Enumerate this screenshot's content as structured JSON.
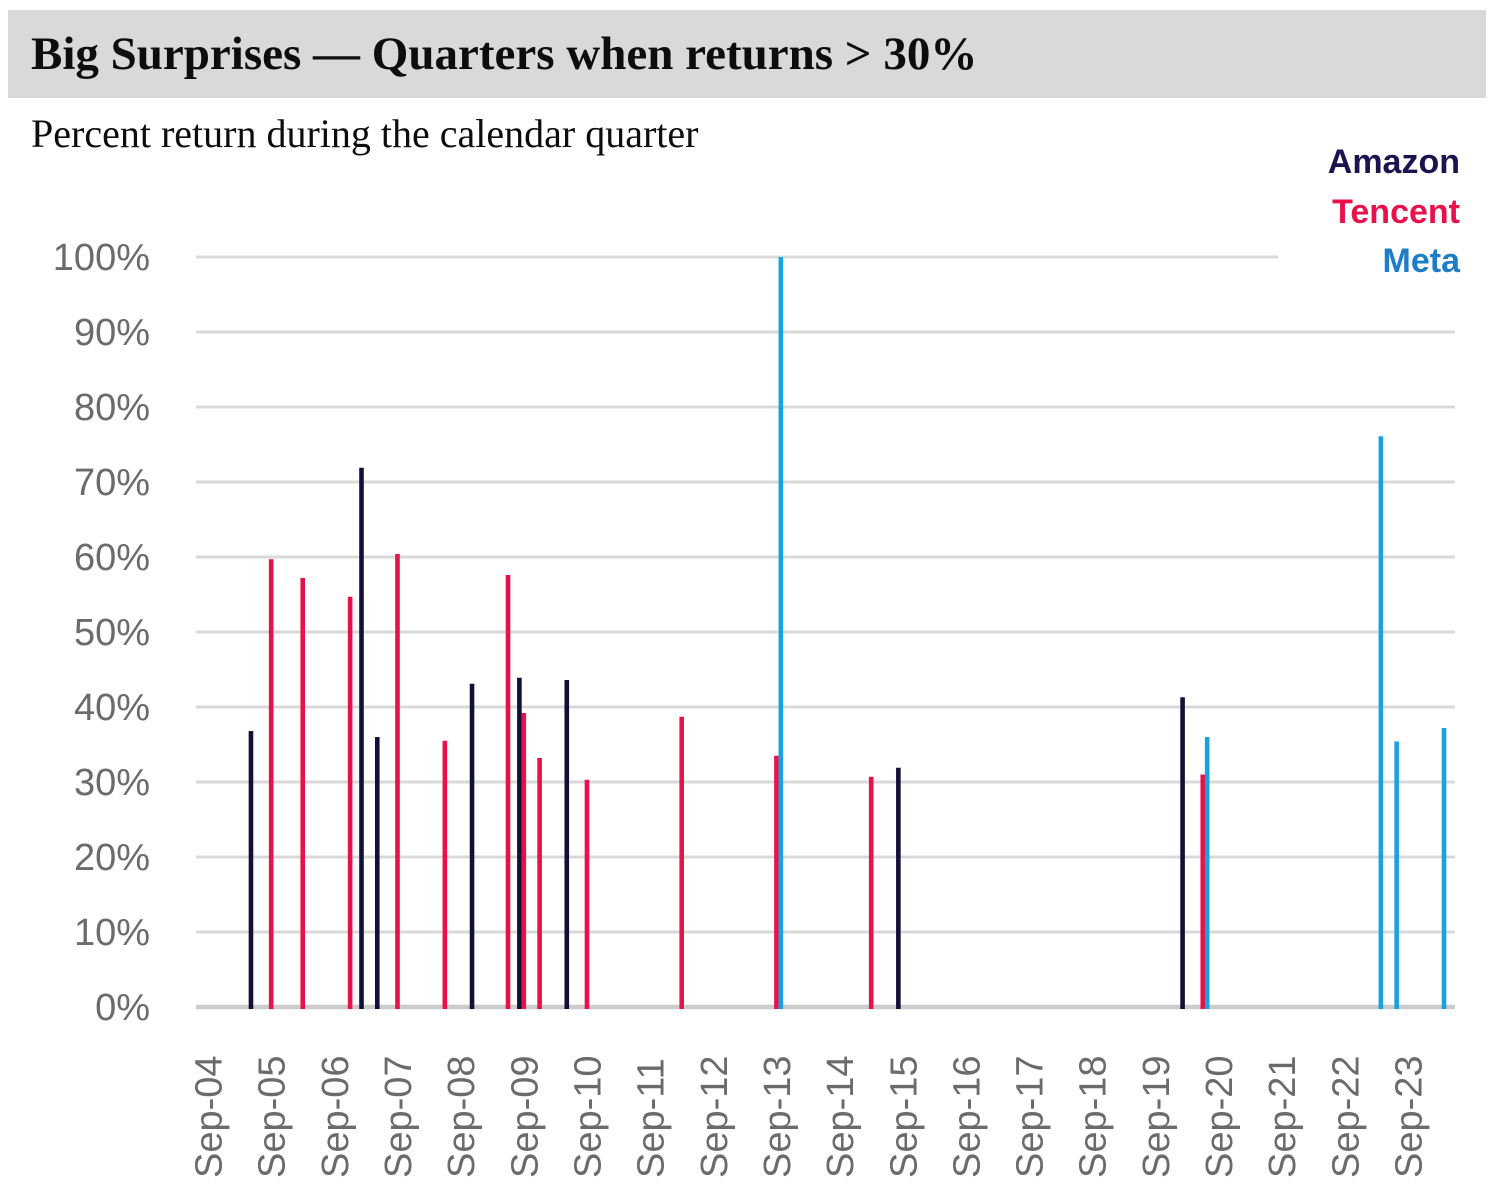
{
  "header": {
    "title": "Big Surprises — Quarters when returns > 30%",
    "subtitle": "Percent return during the calendar quarter"
  },
  "legend": {
    "position": "top-right",
    "items": [
      "Amazon",
      "Tencent",
      "Meta"
    ]
  },
  "chart_data": {
    "type": "bar",
    "title": "Big Surprises — Quarters when returns > 30%",
    "subtitle": "Percent return during the calendar quarter",
    "xlabel": "",
    "ylabel": "",
    "unit": "%",
    "ylim": [
      0,
      100
    ],
    "grid": "horizontal",
    "legend_position": "top-right",
    "grid_color": "#d9d9d9",
    "baseline_color": "#cccccc",
    "tick_label_color": "#6b6b6b",
    "title_band_color": "#d9d9d9",
    "y_ticks": [
      "0%",
      "10%",
      "20%",
      "30%",
      "40%",
      "50%",
      "60%",
      "70%",
      "80%",
      "90%",
      "100%"
    ],
    "x_ticks": [
      {
        "label": "Sep-04",
        "q": 0
      },
      {
        "label": "Sep-05",
        "q": 4
      },
      {
        "label": "Sep-06",
        "q": 8
      },
      {
        "label": "Sep-07",
        "q": 12
      },
      {
        "label": "Sep-08",
        "q": 16
      },
      {
        "label": "Sep-09",
        "q": 20
      },
      {
        "label": "Sep-10",
        "q": 24
      },
      {
        "label": "Sep-11",
        "q": 28
      },
      {
        "label": "Sep-12",
        "q": 32
      },
      {
        "label": "Sep-13",
        "q": 36
      },
      {
        "label": "Sep-14",
        "q": 40
      },
      {
        "label": "Sep-15",
        "q": 44
      },
      {
        "label": "Sep-16",
        "q": 48
      },
      {
        "label": "Sep-17",
        "q": 52
      },
      {
        "label": "Sep-18",
        "q": 56
      },
      {
        "label": "Sep-19",
        "q": 60
      },
      {
        "label": "Sep-20",
        "q": 64
      },
      {
        "label": "Sep-21",
        "q": 68
      },
      {
        "label": "Sep-22",
        "q": 72
      },
      {
        "label": "Sep-23",
        "q": 76
      }
    ],
    "series": [
      {
        "name": "Amazon",
        "color": "#131038",
        "legend_color": "#1a1450",
        "points": [
          {
            "quarter": "Jun-05",
            "q": 3,
            "value": 36.8
          },
          {
            "quarter": "Mar-07",
            "q": 10,
            "value": 71.9
          },
          {
            "quarter": "Jun-07",
            "q": 11,
            "value": 36.0
          },
          {
            "quarter": "Dec-08",
            "q": 17,
            "value": 43.1
          },
          {
            "quarter": "Sep-09",
            "q": 20,
            "value": 43.9
          },
          {
            "quarter": "Jun-10",
            "q": 23,
            "value": 43.6
          },
          {
            "quarter": "Sep-15",
            "q": 44,
            "value": 31.9
          },
          {
            "quarter": "Mar-20",
            "q": 62,
            "value": 41.3
          }
        ]
      },
      {
        "name": "Tencent",
        "color": "#e91149",
        "legend_color": "#e91149",
        "points": [
          {
            "quarter": "Sep-05",
            "q": 4,
            "value": 59.7
          },
          {
            "quarter": "Mar-06",
            "q": 6,
            "value": 57.2
          },
          {
            "quarter": "Dec-06",
            "q": 9,
            "value": 54.7
          },
          {
            "quarter": "Sep-07",
            "q": 12,
            "value": 60.4
          },
          {
            "quarter": "Jun-08",
            "q": 15,
            "value": 35.5
          },
          {
            "quarter": "Jun-09",
            "q": 19,
            "value": 57.6
          },
          {
            "quarter": "Sep-09",
            "q": 20,
            "value": 39.2
          },
          {
            "quarter": "Dec-09",
            "q": 21,
            "value": 33.2
          },
          {
            "quarter": "Sep-10",
            "q": 24,
            "value": 30.3
          },
          {
            "quarter": "Mar-12",
            "q": 30,
            "value": 38.7
          },
          {
            "quarter": "Sep-13",
            "q": 36,
            "value": 33.5
          },
          {
            "quarter": "Mar-15",
            "q": 42,
            "value": 30.7
          },
          {
            "quarter": "Jun-20",
            "q": 63,
            "value": 31.0
          }
        ]
      },
      {
        "name": "Meta",
        "color": "#18a2e2",
        "legend_color": "#1d7ec7",
        "points": [
          {
            "quarter": "Sep-13",
            "q": 36,
            "value": 100.0
          },
          {
            "quarter": "Jun-20",
            "q": 63,
            "value": 36.0
          },
          {
            "quarter": "Mar-23",
            "q": 74,
            "value": 76.1
          },
          {
            "quarter": "Jun-23",
            "q": 75,
            "value": 35.4
          },
          {
            "quarter": "Mar-24",
            "q": 78,
            "value": 37.2
          }
        ]
      }
    ]
  }
}
